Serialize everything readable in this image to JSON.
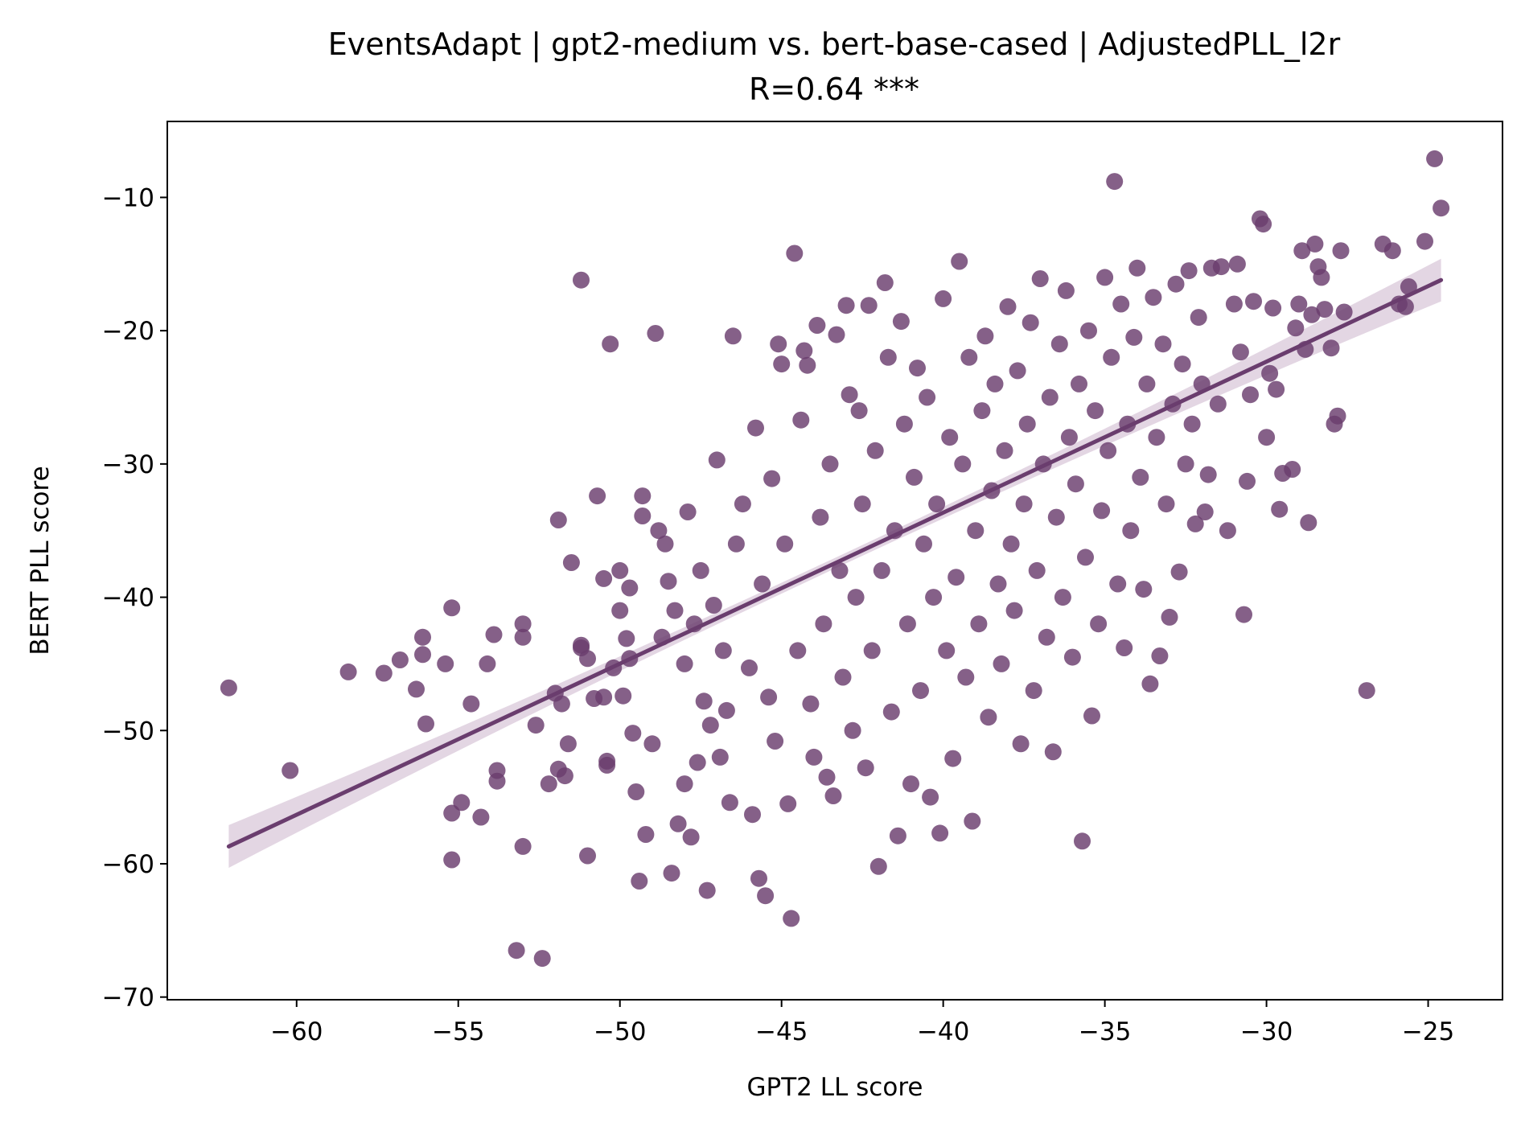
{
  "chart_data": {
    "type": "scatter",
    "title": "EventsAdapt | gpt2-medium vs. bert-base-cased | AdjustedPLL_l2r",
    "subtitle": "R=0.64 ***",
    "xlabel": "GPT2 LL score",
    "ylabel": "BERT PLL score",
    "xlim": [
      -64.0,
      -22.7
    ],
    "ylim": [
      -70.2,
      -4.3
    ],
    "xticks": [
      -60,
      -55,
      -50,
      -45,
      -40,
      -35,
      -30,
      -25
    ],
    "yticks": [
      -70,
      -60,
      -50,
      -40,
      -30,
      -20,
      -10
    ],
    "xtick_labels": [
      "−60",
      "−55",
      "−50",
      "−45",
      "−40",
      "−35",
      "−30",
      "−25"
    ],
    "ytick_labels": [
      "−70",
      "−60",
      "−50",
      "−40",
      "−30",
      "−20",
      "−10"
    ],
    "grid": false,
    "legend": "none",
    "colors": {
      "points": "#6a3d6e",
      "line": "#6a3d6e",
      "band": "#d9c8d9"
    },
    "regression": {
      "x": [
        -62.1,
        -24.6
      ],
      "y": [
        -58.7,
        -16.2
      ],
      "ci_halfwidth_end": 1.6,
      "ci_halfwidth_mid": 0.4
    },
    "points": [
      [
        -62.1,
        -46.8
      ],
      [
        -60.2,
        -53.0
      ],
      [
        -58.4,
        -45.6
      ],
      [
        -57.3,
        -45.7
      ],
      [
        -56.8,
        -44.7
      ],
      [
        -56.3,
        -46.9
      ],
      [
        -56.1,
        -43.0
      ],
      [
        -56.1,
        -44.3
      ],
      [
        -56.0,
        -49.5
      ],
      [
        -55.4,
        -45.0
      ],
      [
        -55.2,
        -56.2
      ],
      [
        -55.2,
        -59.7
      ],
      [
        -55.2,
        -40.8
      ],
      [
        -54.9,
        -55.4
      ],
      [
        -54.6,
        -48.0
      ],
      [
        -54.3,
        -56.5
      ],
      [
        -54.1,
        -45.0
      ],
      [
        -53.9,
        -42.8
      ],
      [
        -53.8,
        -53.0
      ],
      [
        -53.8,
        -53.8
      ],
      [
        -53.2,
        -66.5
      ],
      [
        -53.0,
        -42.0
      ],
      [
        -53.0,
        -43.0
      ],
      [
        -53.0,
        -58.7
      ],
      [
        -52.6,
        -49.6
      ],
      [
        -52.4,
        -67.1
      ],
      [
        -52.2,
        -54.0
      ],
      [
        -52.0,
        -47.2
      ],
      [
        -51.9,
        -52.9
      ],
      [
        -51.9,
        -34.2
      ],
      [
        -51.8,
        -48.0
      ],
      [
        -51.7,
        -53.4
      ],
      [
        -51.6,
        -51.0
      ],
      [
        -51.5,
        -37.4
      ],
      [
        -51.2,
        -43.8
      ],
      [
        -51.2,
        -16.2
      ],
      [
        -51.2,
        -43.6
      ],
      [
        -51.0,
        -44.6
      ],
      [
        -51.0,
        -59.4
      ],
      [
        -50.8,
        -47.6
      ],
      [
        -50.7,
        -32.4
      ],
      [
        -50.5,
        -38.6
      ],
      [
        -50.5,
        -47.5
      ],
      [
        -50.4,
        -52.3
      ],
      [
        -50.4,
        -52.6
      ],
      [
        -50.3,
        -21.0
      ],
      [
        -50.2,
        -45.3
      ],
      [
        -50.0,
        -38.0
      ],
      [
        -50.0,
        -41.0
      ],
      [
        -49.9,
        -47.4
      ],
      [
        -49.8,
        -43.1
      ],
      [
        -49.7,
        -39.3
      ],
      [
        -49.7,
        -44.6
      ],
      [
        -49.6,
        -50.2
      ],
      [
        -49.5,
        -54.6
      ],
      [
        -49.4,
        -61.3
      ],
      [
        -49.3,
        -32.4
      ],
      [
        -49.3,
        -33.9
      ],
      [
        -49.2,
        -57.8
      ],
      [
        -49.0,
        -51.0
      ],
      [
        -48.9,
        -20.2
      ],
      [
        -48.8,
        -35.0
      ],
      [
        -48.7,
        -43.0
      ],
      [
        -48.6,
        -36.0
      ],
      [
        -48.5,
        -38.8
      ],
      [
        -48.4,
        -60.7
      ],
      [
        -48.3,
        -41.0
      ],
      [
        -48.2,
        -57.0
      ],
      [
        -48.0,
        -45.0
      ],
      [
        -48.0,
        -54.0
      ],
      [
        -47.9,
        -33.6
      ],
      [
        -47.8,
        -58.0
      ],
      [
        -47.7,
        -42.0
      ],
      [
        -47.6,
        -52.4
      ],
      [
        -47.5,
        -38.0
      ],
      [
        -47.4,
        -47.8
      ],
      [
        -47.3,
        -62.0
      ],
      [
        -47.2,
        -49.6
      ],
      [
        -47.1,
        -40.6
      ],
      [
        -47.0,
        -29.7
      ],
      [
        -46.9,
        -52.0
      ],
      [
        -46.8,
        -44.0
      ],
      [
        -46.7,
        -48.5
      ],
      [
        -46.6,
        -55.4
      ],
      [
        -46.5,
        -20.4
      ],
      [
        -46.4,
        -36.0
      ],
      [
        -46.2,
        -33.0
      ],
      [
        -46.0,
        -45.3
      ],
      [
        -45.9,
        -56.3
      ],
      [
        -45.8,
        -27.3
      ],
      [
        -45.7,
        -61.1
      ],
      [
        -45.6,
        -39.0
      ],
      [
        -45.5,
        -62.4
      ],
      [
        -45.4,
        -47.5
      ],
      [
        -45.3,
        -31.1
      ],
      [
        -45.2,
        -50.8
      ],
      [
        -45.1,
        -21.0
      ],
      [
        -45.0,
        -22.5
      ],
      [
        -44.9,
        -36.0
      ],
      [
        -44.8,
        -55.5
      ],
      [
        -44.7,
        -64.1
      ],
      [
        -44.6,
        -14.2
      ],
      [
        -44.5,
        -44.0
      ],
      [
        -44.4,
        -26.7
      ],
      [
        -44.3,
        -21.5
      ],
      [
        -44.2,
        -22.6
      ],
      [
        -44.1,
        -48.0
      ],
      [
        -44.0,
        -52.0
      ],
      [
        -43.9,
        -19.6
      ],
      [
        -43.8,
        -34.0
      ],
      [
        -43.7,
        -42.0
      ],
      [
        -43.6,
        -53.5
      ],
      [
        -43.5,
        -30.0
      ],
      [
        -43.4,
        -54.9
      ],
      [
        -43.3,
        -20.3
      ],
      [
        -43.2,
        -38.0
      ],
      [
        -43.1,
        -46.0
      ],
      [
        -43.0,
        -18.1
      ],
      [
        -42.9,
        -24.8
      ],
      [
        -42.8,
        -50.0
      ],
      [
        -42.7,
        -40.0
      ],
      [
        -42.6,
        -26.0
      ],
      [
        -42.5,
        -33.0
      ],
      [
        -42.4,
        -52.8
      ],
      [
        -42.3,
        -18.1
      ],
      [
        -42.2,
        -44.0
      ],
      [
        -42.1,
        -29.0
      ],
      [
        -42.0,
        -60.2
      ],
      [
        -41.9,
        -38.0
      ],
      [
        -41.8,
        -16.4
      ],
      [
        -41.7,
        -22.0
      ],
      [
        -41.6,
        -48.6
      ],
      [
        -41.5,
        -35.0
      ],
      [
        -41.4,
        -57.9
      ],
      [
        -41.3,
        -19.3
      ],
      [
        -41.2,
        -27.0
      ],
      [
        -41.1,
        -42.0
      ],
      [
        -41.0,
        -54.0
      ],
      [
        -40.9,
        -31.0
      ],
      [
        -40.8,
        -22.8
      ],
      [
        -40.7,
        -47.0
      ],
      [
        -40.6,
        -36.0
      ],
      [
        -40.5,
        -25.0
      ],
      [
        -40.4,
        -55.0
      ],
      [
        -40.3,
        -40.0
      ],
      [
        -40.2,
        -33.0
      ],
      [
        -40.1,
        -57.7
      ],
      [
        -40.0,
        -17.6
      ],
      [
        -39.9,
        -44.0
      ],
      [
        -39.8,
        -28.0
      ],
      [
        -39.7,
        -52.1
      ],
      [
        -39.6,
        -38.5
      ],
      [
        -39.5,
        -14.8
      ],
      [
        -39.4,
        -30.0
      ],
      [
        -39.3,
        -46.0
      ],
      [
        -39.2,
        -22.0
      ],
      [
        -39.1,
        -56.8
      ],
      [
        -39.0,
        -35.0
      ],
      [
        -38.9,
        -42.0
      ],
      [
        -38.8,
        -26.0
      ],
      [
        -38.7,
        -20.4
      ],
      [
        -38.6,
        -49.0
      ],
      [
        -38.5,
        -32.0
      ],
      [
        -38.4,
        -24.0
      ],
      [
        -38.3,
        -39.0
      ],
      [
        -38.2,
        -45.0
      ],
      [
        -38.1,
        -29.0
      ],
      [
        -38.0,
        -18.2
      ],
      [
        -37.9,
        -36.0
      ],
      [
        -37.8,
        -41.0
      ],
      [
        -37.7,
        -23.0
      ],
      [
        -37.6,
        -51.0
      ],
      [
        -37.5,
        -33.0
      ],
      [
        -37.4,
        -27.0
      ],
      [
        -37.3,
        -19.4
      ],
      [
        -37.2,
        -47.0
      ],
      [
        -37.1,
        -38.0
      ],
      [
        -37.0,
        -16.1
      ],
      [
        -36.9,
        -30.0
      ],
      [
        -36.8,
        -43.0
      ],
      [
        -36.7,
        -25.0
      ],
      [
        -36.6,
        -51.6
      ],
      [
        -36.5,
        -34.0
      ],
      [
        -36.4,
        -21.0
      ],
      [
        -36.3,
        -40.0
      ],
      [
        -36.2,
        -17.0
      ],
      [
        -36.1,
        -28.0
      ],
      [
        -36.0,
        -44.5
      ],
      [
        -35.9,
        -31.5
      ],
      [
        -35.8,
        -24.0
      ],
      [
        -35.7,
        -58.3
      ],
      [
        -35.6,
        -37.0
      ],
      [
        -35.5,
        -20.0
      ],
      [
        -35.4,
        -48.9
      ],
      [
        -35.3,
        -26.0
      ],
      [
        -35.2,
        -42.0
      ],
      [
        -35.1,
        -33.5
      ],
      [
        -35.0,
        -16.0
      ],
      [
        -34.9,
        -29.0
      ],
      [
        -34.8,
        -22.0
      ],
      [
        -34.7,
        -8.8
      ],
      [
        -34.6,
        -39.0
      ],
      [
        -34.5,
        -18.0
      ],
      [
        -34.4,
        -43.8
      ],
      [
        -34.3,
        -27.0
      ],
      [
        -34.2,
        -35.0
      ],
      [
        -34.1,
        -20.5
      ],
      [
        -34.0,
        -15.3
      ],
      [
        -33.9,
        -31.0
      ],
      [
        -33.8,
        -39.4
      ],
      [
        -33.7,
        -24.0
      ],
      [
        -33.6,
        -46.5
      ],
      [
        -33.5,
        -17.5
      ],
      [
        -33.4,
        -28.0
      ],
      [
        -33.3,
        -44.4
      ],
      [
        -33.2,
        -21.0
      ],
      [
        -33.1,
        -33.0
      ],
      [
        -33.0,
        -41.5
      ],
      [
        -32.9,
        -25.5
      ],
      [
        -32.8,
        -16.5
      ],
      [
        -32.7,
        -38.1
      ],
      [
        -32.6,
        -22.5
      ],
      [
        -32.5,
        -30.0
      ],
      [
        -32.4,
        -15.5
      ],
      [
        -32.3,
        -27.0
      ],
      [
        -32.2,
        -34.5
      ],
      [
        -32.1,
        -19.0
      ],
      [
        -32.0,
        -24.0
      ],
      [
        -31.9,
        -33.6
      ],
      [
        -31.8,
        -30.8
      ],
      [
        -31.7,
        -15.3
      ],
      [
        -31.5,
        -25.5
      ],
      [
        -31.4,
        -15.2
      ],
      [
        -31.2,
        -35.0
      ],
      [
        -31.0,
        -18.0
      ],
      [
        -30.9,
        -15.0
      ],
      [
        -30.8,
        -21.6
      ],
      [
        -30.7,
        -41.3
      ],
      [
        -30.6,
        -31.3
      ],
      [
        -30.5,
        -24.8
      ],
      [
        -30.4,
        -17.8
      ],
      [
        -30.2,
        -11.6
      ],
      [
        -30.1,
        -12.0
      ],
      [
        -30.0,
        -28.0
      ],
      [
        -29.9,
        -23.2
      ],
      [
        -29.8,
        -18.3
      ],
      [
        -29.7,
        -24.4
      ],
      [
        -29.6,
        -33.4
      ],
      [
        -29.5,
        -30.7
      ],
      [
        -29.2,
        -30.4
      ],
      [
        -29.1,
        -19.8
      ],
      [
        -29.0,
        -18.0
      ],
      [
        -28.9,
        -14.0
      ],
      [
        -28.8,
        -21.4
      ],
      [
        -28.7,
        -34.4
      ],
      [
        -28.6,
        -18.8
      ],
      [
        -28.5,
        -13.5
      ],
      [
        -28.4,
        -15.2
      ],
      [
        -28.3,
        -16.0
      ],
      [
        -28.2,
        -18.4
      ],
      [
        -28.0,
        -21.3
      ],
      [
        -27.9,
        -27.0
      ],
      [
        -27.8,
        -26.4
      ],
      [
        -27.7,
        -14.0
      ],
      [
        -27.6,
        -18.6
      ],
      [
        -26.9,
        -47.0
      ],
      [
        -26.4,
        -13.5
      ],
      [
        -26.1,
        -14.0
      ],
      [
        -25.9,
        -18.0
      ],
      [
        -25.7,
        -18.2
      ],
      [
        -25.6,
        -16.7
      ],
      [
        -25.1,
        -13.3
      ],
      [
        -24.8,
        -7.1
      ],
      [
        -24.6,
        -10.8
      ]
    ]
  }
}
